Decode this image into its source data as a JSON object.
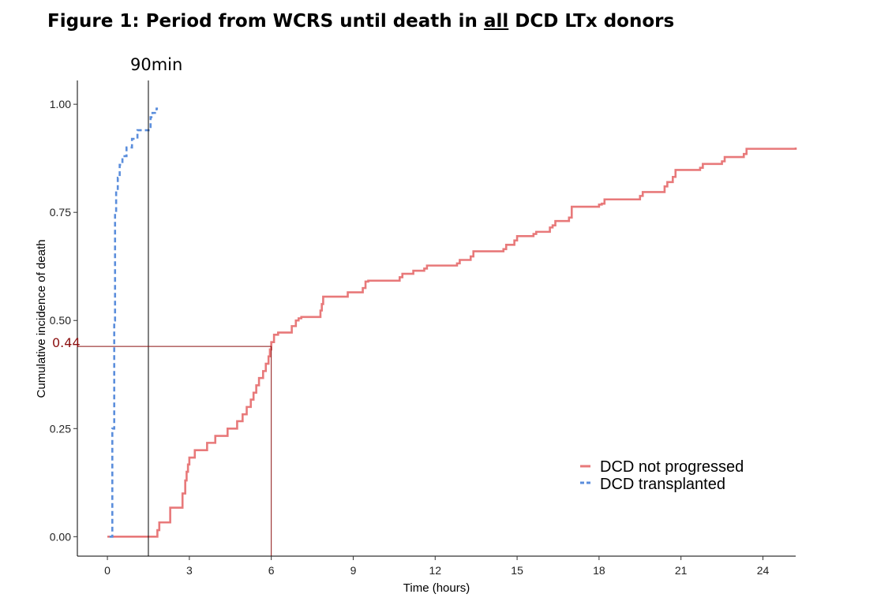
{
  "title": {
    "before": "Figure 1: Period from WCRS until death in ",
    "underlined": "all",
    "after": " DCD LTx donors"
  },
  "chart_data": {
    "type": "line",
    "step": true,
    "xlabel": "Time (hours)",
    "ylabel": "Cumulative incidence of death",
    "xlim": [
      -1.1,
      25.2
    ],
    "ylim": [
      -0.045,
      1.055
    ],
    "xticks": [
      0,
      3,
      6,
      9,
      12,
      15,
      18,
      21,
      24
    ],
    "yticks": [
      0.0,
      0.25,
      0.5,
      0.75,
      1.0
    ],
    "ytick_labels": [
      "0.00",
      "0.25",
      "0.50",
      "0.75",
      "1.00"
    ],
    "grid": false,
    "legend_position": "bottom-right",
    "series": [
      {
        "name": "DCD not progressed",
        "color": "#E8797A",
        "dash": "solid",
        "x": [
          0,
          1.83,
          1.9,
          2.3,
          2.75,
          2.85,
          2.9,
          2.95,
          3.0,
          3.2,
          3.65,
          3.95,
          4.4,
          4.75,
          4.95,
          5.1,
          5.25,
          5.35,
          5.45,
          5.55,
          5.7,
          5.8,
          5.9,
          5.95,
          6.0,
          6.1,
          6.25,
          6.75,
          6.9,
          7.0,
          7.1,
          7.8,
          7.85,
          7.9,
          8.8,
          9.35,
          9.45,
          9.55,
          10.7,
          10.8,
          11.2,
          11.6,
          11.7,
          12.8,
          12.9,
          13.3,
          13.4,
          14.5,
          14.6,
          14.9,
          15.0,
          15.6,
          15.7,
          16.2,
          16.3,
          16.4,
          16.9,
          17.0,
          18.0,
          18.1,
          18.2,
          19.5,
          19.6,
          20.4,
          20.5,
          20.7,
          20.8,
          21.7,
          21.8,
          22.5,
          22.6,
          23.3,
          23.4,
          25.2
        ],
        "y": [
          0,
          0.015,
          0.033,
          0.067,
          0.1,
          0.13,
          0.15,
          0.167,
          0.183,
          0.2,
          0.217,
          0.233,
          0.25,
          0.267,
          0.283,
          0.3,
          0.317,
          0.333,
          0.35,
          0.367,
          0.383,
          0.4,
          0.417,
          0.433,
          0.45,
          0.467,
          0.472,
          0.487,
          0.5,
          0.505,
          0.508,
          0.523,
          0.538,
          0.555,
          0.565,
          0.575,
          0.59,
          0.592,
          0.6,
          0.608,
          0.615,
          0.62,
          0.627,
          0.632,
          0.64,
          0.648,
          0.66,
          0.665,
          0.675,
          0.685,
          0.695,
          0.7,
          0.705,
          0.715,
          0.72,
          0.73,
          0.738,
          0.763,
          0.768,
          0.77,
          0.78,
          0.788,
          0.797,
          0.81,
          0.82,
          0.832,
          0.848,
          0.853,
          0.862,
          0.868,
          0.878,
          0.885,
          0.897,
          0.9
        ]
      },
      {
        "name": "DCD transplanted",
        "color": "#5B8EDC",
        "dash": "dashed",
        "x": [
          0.08,
          0.18,
          0.25,
          0.28,
          0.32,
          0.38,
          0.45,
          0.55,
          0.7,
          0.9,
          1.1,
          1.4,
          1.58,
          1.65,
          1.8,
          1.85
        ],
        "y": [
          0,
          0.25,
          0.5,
          0.75,
          0.8,
          0.83,
          0.86,
          0.88,
          0.9,
          0.92,
          0.94,
          0.94,
          0.97,
          0.98,
          0.99,
          0.99
        ]
      }
    ],
    "annotations": [
      {
        "label": "90min",
        "x": 1.5
      },
      {
        "label": "0.44",
        "y": 0.44,
        "x_end": 6,
        "color": "#8B1010"
      }
    ]
  }
}
